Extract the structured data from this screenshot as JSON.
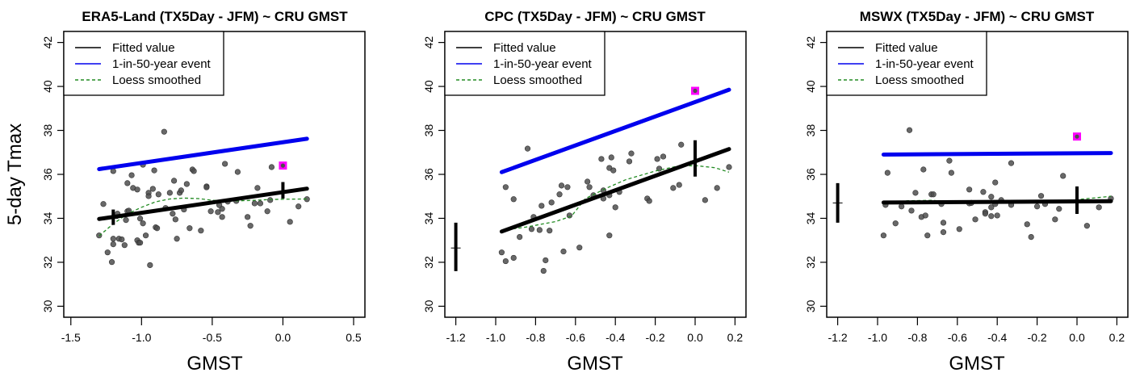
{
  "chart_data": [
    {
      "type": "scatter",
      "title": "ERA5-Land (TX5Day - JFM) ~ CRU GMST",
      "xlabel": "GMST",
      "ylabel": "5-day Tmax",
      "xlim": [
        -1.55,
        0.58
      ],
      "ylim": [
        29.5,
        42.5
      ],
      "xticks": [
        -1.5,
        -1.0,
        -0.5,
        0.0,
        0.5
      ],
      "xtick_labels": [
        "-1.5",
        "-1.0",
        "-0.5",
        "0.0",
        "0.5"
      ],
      "yticks": [
        30,
        32,
        34,
        36,
        38,
        40,
        42
      ],
      "ytick_labels": [
        "30",
        "32",
        "34",
        "36",
        "38",
        "40",
        "42"
      ],
      "legend": {
        "position": "top-left",
        "entries": [
          {
            "label": "Fitted value",
            "color": "#000000",
            "style": "solid"
          },
          {
            "label": "1-in-50-year event",
            "color": "#0000ee",
            "style": "solid"
          },
          {
            "label": "Loess smoothed",
            "color": "#228b22",
            "style": "dashed"
          }
        ]
      },
      "points": [
        [
          -0.84,
          37.94
        ],
        [
          -1.2,
          36.15
        ],
        [
          -1.07,
          35.96
        ],
        [
          -0.99,
          36.44
        ],
        [
          -0.91,
          36.18
        ],
        [
          -0.64,
          36.22
        ],
        [
          -0.63,
          36.15
        ],
        [
          -1.1,
          35.6
        ],
        [
          -1.06,
          35.38
        ],
        [
          -1.03,
          35.31
        ],
        [
          -0.95,
          35.16
        ],
        [
          -0.95,
          35.01
        ],
        [
          -0.92,
          35.34
        ],
        [
          -0.88,
          35.09
        ],
        [
          -0.8,
          35.16
        ],
        [
          -0.77,
          35.71
        ],
        [
          -0.73,
          35.16
        ],
        [
          -0.72,
          35.27
        ],
        [
          -0.68,
          35.56
        ],
        [
          -0.54,
          35.45
        ],
        [
          -1.27,
          34.65
        ],
        [
          -0.41,
          36.48
        ],
        [
          -0.32,
          36.11
        ],
        [
          -0.08,
          36.33
        ],
        [
          -0.18,
          35.38
        ],
        [
          0.17,
          34.87
        ],
        [
          0.11,
          34.54
        ],
        [
          0.05,
          33.84
        ],
        [
          -0.09,
          34.83
        ],
        [
          -0.2,
          34.68
        ],
        [
          -0.16,
          34.68
        ],
        [
          -0.11,
          34.32
        ],
        [
          -0.25,
          34.06
        ],
        [
          -0.23,
          33.66
        ],
        [
          -0.51,
          34.32
        ],
        [
          -0.46,
          34.28
        ],
        [
          -0.43,
          34.43
        ],
        [
          -0.43,
          34.06
        ],
        [
          -0.58,
          33.44
        ],
        [
          -0.33,
          34.79
        ],
        [
          -0.39,
          34.76
        ],
        [
          -1.3,
          33.22
        ],
        [
          -1.2,
          33.07
        ],
        [
          -1.16,
          33.07
        ],
        [
          -1.14,
          33.04
        ],
        [
          -1.2,
          32.82
        ],
        [
          -1.12,
          32.78
        ],
        [
          -1.24,
          32.45
        ],
        [
          -1.21,
          32.01
        ],
        [
          -0.94,
          31.87
        ],
        [
          -1.03,
          33.0
        ],
        [
          -1.02,
          32.89
        ],
        [
          -1.01,
          32.89
        ],
        [
          -0.97,
          33.22
        ],
        [
          -0.9,
          33.59
        ],
        [
          -0.89,
          33.55
        ],
        [
          -1.01,
          33.99
        ],
        [
          -0.99,
          33.77
        ],
        [
          -0.75,
          33.07
        ],
        [
          -0.66,
          33.55
        ],
        [
          -0.78,
          34.21
        ],
        [
          -0.76,
          33.95
        ],
        [
          -1.11,
          33.92
        ],
        [
          -1.17,
          34.21
        ],
        [
          -1.1,
          34.32
        ],
        [
          -1.09,
          34.35
        ],
        [
          -0.7,
          34.4
        ],
        [
          -0.83,
          34.47
        ],
        [
          -0.45,
          34.6
        ],
        [
          -0.54,
          35.41
        ]
      ],
      "highlight_point": [
        0.0,
        36.4
      ],
      "fitted_line": [
        [
          -1.3,
          33.97
        ],
        [
          0.17,
          35.35
        ]
      ],
      "return_level_line": [
        [
          -1.3,
          36.24
        ],
        [
          0.17,
          37.62
        ]
      ],
      "loess": [
        [
          -1.3,
          33.2
        ],
        [
          -1.2,
          33.75
        ],
        [
          -1.1,
          34.2
        ],
        [
          -1.0,
          34.5
        ],
        [
          -0.9,
          34.75
        ],
        [
          -0.8,
          34.88
        ],
        [
          -0.7,
          34.92
        ],
        [
          -0.6,
          34.9
        ],
        [
          -0.5,
          34.82
        ],
        [
          -0.4,
          34.78
        ],
        [
          -0.3,
          34.8
        ],
        [
          -0.2,
          34.82
        ],
        [
          -0.1,
          34.85
        ],
        [
          0.0,
          34.87
        ],
        [
          0.17,
          34.88
        ]
      ],
      "error_bars": [
        {
          "x": -1.2,
          "center": 34.0,
          "low": 33.7,
          "high": 34.4,
          "weight": "thick"
        },
        {
          "x": 0.0,
          "center": 35.2,
          "low": 34.9,
          "high": 35.65,
          "weight": "thick"
        }
      ]
    },
    {
      "type": "scatter",
      "title": "CPC (TX5Day - JFM) ~ CRU GMST",
      "xlabel": "GMST",
      "ylabel": "",
      "xlim": [
        -1.255,
        0.255
      ],
      "ylim": [
        29.5,
        42.5
      ],
      "xticks": [
        -1.2,
        -1.0,
        -0.8,
        -0.6,
        -0.4,
        -0.2,
        0.0,
        0.2
      ],
      "xtick_labels": [
        "-1.2",
        "-1.0",
        "-0.8",
        "-0.6",
        "-0.4",
        "-0.2",
        "0.0",
        "0.2"
      ],
      "yticks": [
        30,
        32,
        34,
        36,
        38,
        40,
        42
      ],
      "ytick_labels": [
        "30",
        "32",
        "34",
        "36",
        "38",
        "40",
        "42"
      ],
      "legend": {
        "position": "top-left",
        "entries": [
          {
            "label": "Fitted value",
            "color": "#000000",
            "style": "solid"
          },
          {
            "label": "1-in-50-year event",
            "color": "#0000ee",
            "style": "solid"
          },
          {
            "label": "Loess smoothed",
            "color": "#228b22",
            "style": "dashed"
          }
        ]
      },
      "points": [
        [
          -0.84,
          37.17
        ],
        [
          -0.95,
          35.42
        ],
        [
          -0.91,
          34.87
        ],
        [
          -0.77,
          34.57
        ],
        [
          -0.72,
          34.72
        ],
        [
          -0.68,
          35.09
        ],
        [
          -0.67,
          35.49
        ],
        [
          -0.64,
          35.42
        ],
        [
          -0.81,
          34.06
        ],
        [
          -0.82,
          33.51
        ],
        [
          -0.78,
          33.47
        ],
        [
          -0.73,
          33.44
        ],
        [
          -0.88,
          33.15
        ],
        [
          -0.97,
          32.45
        ],
        [
          -0.91,
          32.2
        ],
        [
          -0.95,
          32.05
        ],
        [
          -0.75,
          32.09
        ],
        [
          -0.76,
          31.61
        ],
        [
          -0.66,
          32.49
        ],
        [
          -0.58,
          32.67
        ],
        [
          -0.63,
          34.13
        ],
        [
          -0.54,
          35.67
        ],
        [
          -0.53,
          35.42
        ],
        [
          -0.51,
          35.05
        ],
        [
          -0.47,
          36.7
        ],
        [
          -0.42,
          36.77
        ],
        [
          -0.43,
          36.29
        ],
        [
          -0.41,
          36.18
        ],
        [
          -0.46,
          35.27
        ],
        [
          -0.46,
          34.9
        ],
        [
          -0.43,
          35.05
        ],
        [
          -0.43,
          33.22
        ],
        [
          -0.32,
          36.95
        ],
        [
          -0.33,
          36.59
        ],
        [
          -0.4,
          34.5
        ],
        [
          -0.38,
          35.2
        ],
        [
          -0.19,
          36.7
        ],
        [
          -0.16,
          36.81
        ],
        [
          -0.18,
          36.26
        ],
        [
          -0.07,
          37.35
        ],
        [
          -0.24,
          34.9
        ],
        [
          -0.23,
          34.79
        ],
        [
          -0.11,
          35.38
        ],
        [
          -0.08,
          35.52
        ],
        [
          0.05,
          34.83
        ],
        [
          0.11,
          35.38
        ],
        [
          0.17,
          36.33
        ]
      ],
      "highlight_point": [
        0.0,
        39.8
      ],
      "fitted_line": [
        [
          -0.97,
          33.4
        ],
        [
          0.17,
          37.15
        ]
      ],
      "return_level_line": [
        [
          -0.97,
          36.1
        ],
        [
          0.17,
          39.85
        ]
      ],
      "loess": [
        [
          -0.97,
          33.45
        ],
        [
          -0.85,
          33.6
        ],
        [
          -0.7,
          33.85
        ],
        [
          -0.62,
          34.1
        ],
        [
          -0.55,
          34.9
        ],
        [
          -0.45,
          35.35
        ],
        [
          -0.35,
          35.75
        ],
        [
          -0.2,
          36.15
        ],
        [
          -0.1,
          36.35
        ],
        [
          0.0,
          36.4
        ],
        [
          0.1,
          36.3
        ],
        [
          0.17,
          36.1
        ]
      ],
      "error_bars": [
        {
          "x": -1.2,
          "center": 32.65,
          "low": 31.6,
          "high": 33.8,
          "weight": "thick"
        },
        {
          "x": 0.0,
          "center": 36.6,
          "low": 35.9,
          "high": 37.55,
          "weight": "thick"
        }
      ]
    },
    {
      "type": "scatter",
      "title": "MSWX (TX5Day - JFM) ~ CRU GMST",
      "xlabel": "GMST",
      "ylabel": "",
      "xlim": [
        -1.255,
        0.255
      ],
      "ylim": [
        29.5,
        42.5
      ],
      "xticks": [
        -1.2,
        -1.0,
        -0.8,
        -0.6,
        -0.4,
        -0.2,
        0.0,
        0.2
      ],
      "xtick_labels": [
        "-1.2",
        "-1.0",
        "-0.8",
        "-0.6",
        "-0.4",
        "-0.2",
        "0.0",
        "0.2"
      ],
      "yticks": [
        30,
        32,
        34,
        36,
        38,
        40,
        42
      ],
      "ytick_labels": [
        "30",
        "32",
        "34",
        "36",
        "38",
        "40",
        "42"
      ],
      "legend": {
        "position": "top-left",
        "entries": [
          {
            "label": "Fitted value",
            "color": "#000000",
            "style": "solid"
          },
          {
            "label": "1-in-50-year event",
            "color": "#0000ee",
            "style": "solid"
          },
          {
            "label": "Loess smoothed",
            "color": "#228b22",
            "style": "dashed"
          }
        ]
      },
      "points": [
        [
          -0.84,
          38.01
        ],
        [
          -0.95,
          36.07
        ],
        [
          -0.77,
          36.22
        ],
        [
          -0.64,
          36.62
        ],
        [
          -0.63,
          36.07
        ],
        [
          -0.41,
          35.63
        ],
        [
          -0.54,
          35.31
        ],
        [
          -0.81,
          35.16
        ],
        [
          -0.73,
          35.09
        ],
        [
          -0.72,
          35.09
        ],
        [
          -0.47,
          35.2
        ],
        [
          -0.43,
          34.98
        ],
        [
          -0.38,
          34.83
        ],
        [
          -0.96,
          34.61
        ],
        [
          -0.88,
          34.54
        ],
        [
          -0.83,
          34.35
        ],
        [
          -0.78,
          34.06
        ],
        [
          -0.76,
          34.13
        ],
        [
          -0.67,
          33.8
        ],
        [
          -0.51,
          33.95
        ],
        [
          -0.46,
          34.28
        ],
        [
          -0.46,
          34.21
        ],
        [
          -0.43,
          34.5
        ],
        [
          -0.4,
          34.13
        ],
        [
          -0.43,
          34.1
        ],
        [
          -0.91,
          33.77
        ],
        [
          -0.97,
          33.22
        ],
        [
          -0.75,
          33.22
        ],
        [
          -0.67,
          33.37
        ],
        [
          -0.59,
          33.51
        ],
        [
          -0.68,
          34.65
        ],
        [
          -0.54,
          34.68
        ],
        [
          -0.33,
          36.51
        ],
        [
          -0.07,
          35.93
        ],
        [
          -0.18,
          35.02
        ],
        [
          -0.2,
          34.54
        ],
        [
          -0.16,
          34.65
        ],
        [
          -0.09,
          34.43
        ],
        [
          -0.33,
          34.61
        ],
        [
          -0.25,
          33.73
        ],
        [
          -0.23,
          33.15
        ],
        [
          -0.11,
          33.95
        ],
        [
          0.05,
          33.66
        ],
        [
          0.11,
          34.5
        ],
        [
          0.17,
          34.9
        ],
        [
          -0.41,
          34.65
        ],
        [
          -0.53,
          34.7
        ]
      ],
      "highlight_point": [
        0.0,
        37.72
      ],
      "fitted_line": [
        [
          -0.97,
          34.72
        ],
        [
          0.17,
          34.78
        ]
      ],
      "return_level_line": [
        [
          -0.97,
          36.9
        ],
        [
          0.17,
          36.97
        ]
      ],
      "loess": [
        [
          -0.97,
          34.65
        ],
        [
          -0.85,
          34.8
        ],
        [
          -0.72,
          34.82
        ],
        [
          -0.62,
          34.68
        ],
        [
          -0.5,
          34.7
        ],
        [
          -0.4,
          34.72
        ],
        [
          -0.3,
          34.7
        ],
        [
          -0.2,
          34.72
        ],
        [
          -0.1,
          34.78
        ],
        [
          0.0,
          34.85
        ],
        [
          0.17,
          35.0
        ]
      ],
      "error_bars": [
        {
          "x": -1.2,
          "center": 34.7,
          "low": 33.8,
          "high": 35.6,
          "weight": "thick"
        },
        {
          "x": 0.0,
          "center": 34.8,
          "low": 34.2,
          "high": 35.45,
          "weight": "thick"
        }
      ]
    }
  ]
}
